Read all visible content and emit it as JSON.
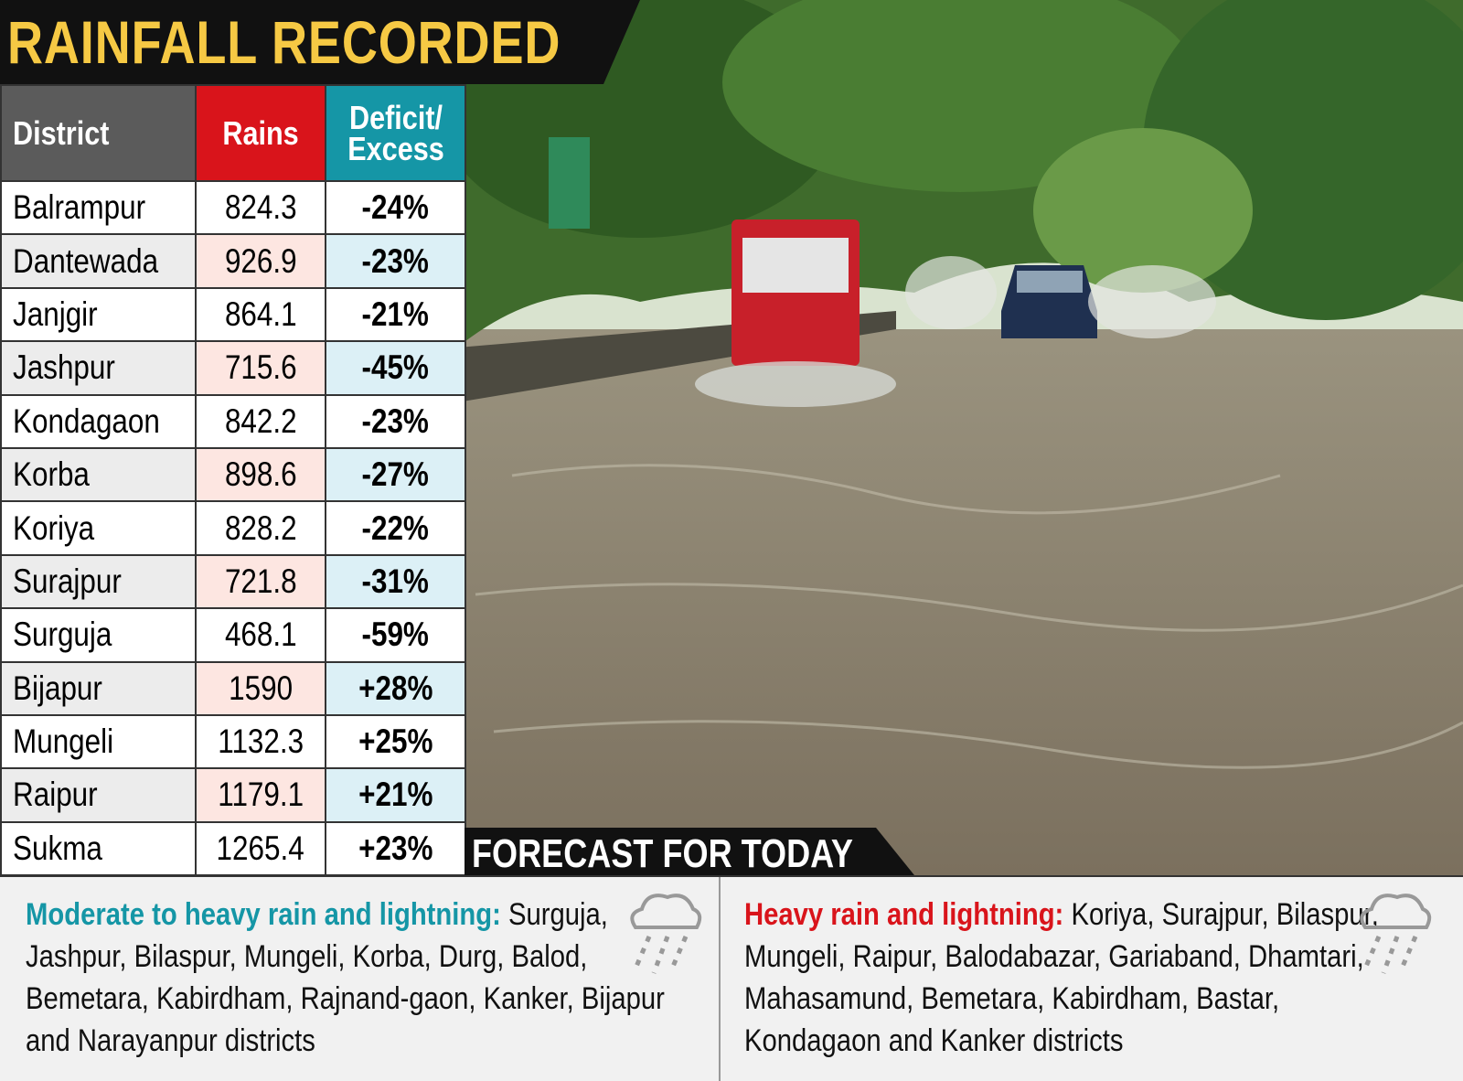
{
  "header": {
    "title": "RAINFALL RECORDED"
  },
  "table": {
    "columns": [
      "District",
      "Rains",
      "Deficit/ Excess"
    ],
    "rows": [
      [
        "Balrampur",
        "824.3",
        "-24%"
      ],
      [
        "Dantewada",
        "926.9",
        "-23%"
      ],
      [
        "Janjgir",
        "864.1",
        "-21%"
      ],
      [
        "Jashpur",
        "715.6",
        "-45%"
      ],
      [
        "Kondagaon",
        "842.2",
        "-23%"
      ],
      [
        "Korba",
        "898.6",
        "-27%"
      ],
      [
        "Koriya",
        "828.2",
        "-22%"
      ],
      [
        "Surajpur",
        "721.8",
        "-31%"
      ],
      [
        "Surguja",
        "468.1",
        "-59%"
      ],
      [
        "Bijapur",
        "1590",
        "+28%"
      ],
      [
        "Mungeli",
        "1132.3",
        "+25%"
      ],
      [
        "Raipur",
        "1179.1",
        "+21%"
      ],
      [
        "Sukma",
        "1265.4",
        "+23%"
      ]
    ]
  },
  "forecast": {
    "title": "FORECAST FOR TODAY",
    "panels": [
      {
        "heading": "Moderate to heavy rain and lightning:",
        "text": "Surguja, Jashpur, Bilaspur, Mungeli, Korba, Durg, Balod, Bemetara, Kabirdham, Rajnand-gaon, Kanker, Bijapur and Narayanpur districts"
      },
      {
        "heading": "Heavy rain and lightning:",
        "text": "Koriya, Surajpur, Bilaspur, Mungeli, Raipur, Balodabazar, Gariaband, Dhamtari, Mahasamund, Bemetara, Kabirdham, Bastar, Kondagaon and Kanker districts"
      }
    ]
  }
}
